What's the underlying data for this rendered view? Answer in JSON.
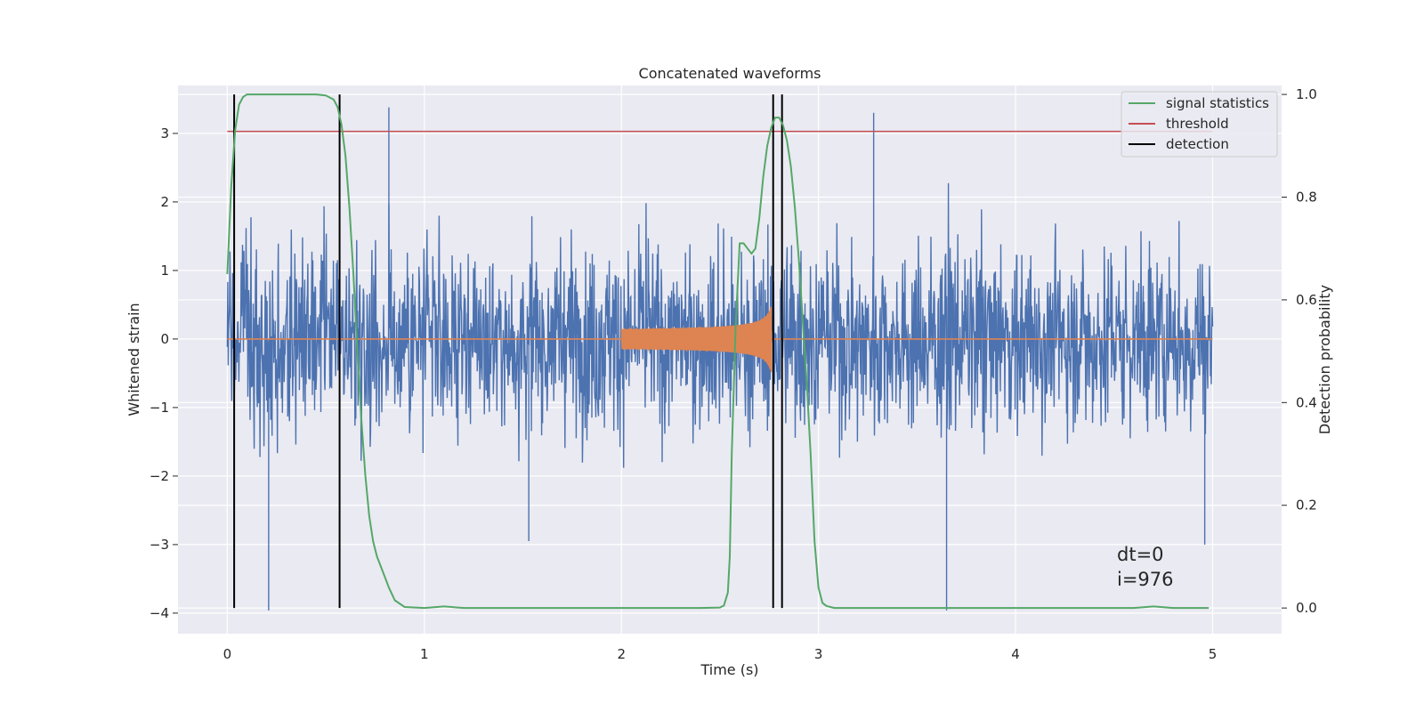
{
  "chart_data": {
    "type": "line",
    "title": "Concatenated waveforms",
    "xlabel": "Time (s)",
    "ylabel": "Whitened strain",
    "y2label": "Detection probability",
    "xlim": [
      -0.25,
      5.35
    ],
    "ylim": [
      -4.3,
      3.7
    ],
    "y2lim": [
      -0.05,
      1.0175
    ],
    "xticks": [
      "0",
      "1",
      "2",
      "3",
      "4",
      "5"
    ],
    "yticks": [
      "−4",
      "−3",
      "−2",
      "−1",
      "0",
      "1",
      "2",
      "3"
    ],
    "y2ticks": [
      "0.0",
      "0.2",
      "0.4",
      "0.6",
      "0.8",
      "1.0"
    ],
    "grid": true,
    "legend_position": "top-right",
    "colors": {
      "background": "#eaeaf2",
      "grid": "#ffffff",
      "strain": "#4c72b0",
      "injection": "#dd8452",
      "signal_statistics": "#55a868",
      "threshold": "#c44e52",
      "detection": "#000000"
    },
    "series": [
      {
        "name": "signal statistics",
        "axis": "right",
        "x": [
          0.0,
          0.02,
          0.04,
          0.06,
          0.08,
          0.1,
          0.15,
          0.3,
          0.45,
          0.5,
          0.54,
          0.56,
          0.58,
          0.6,
          0.62,
          0.64,
          0.66,
          0.68,
          0.7,
          0.72,
          0.74,
          0.76,
          0.78,
          0.8,
          0.82,
          0.85,
          0.9,
          1.0,
          1.1,
          1.2,
          1.5,
          2.0,
          2.4,
          2.5,
          2.52,
          2.54,
          2.55,
          2.56,
          2.58,
          2.6,
          2.62,
          2.64,
          2.66,
          2.68,
          2.7,
          2.72,
          2.74,
          2.76,
          2.78,
          2.8,
          2.82,
          2.84,
          2.86,
          2.88,
          2.9,
          2.92,
          2.94,
          2.96,
          2.98,
          3.0,
          3.02,
          3.04,
          3.08,
          3.2,
          4.0,
          4.6,
          4.7,
          4.8,
          4.98
        ],
        "values": [
          0.65,
          0.82,
          0.93,
          0.98,
          0.995,
          1.0,
          1.0,
          1.0,
          1.0,
          0.998,
          0.99,
          0.975,
          0.94,
          0.88,
          0.78,
          0.65,
          0.5,
          0.37,
          0.26,
          0.18,
          0.13,
          0.1,
          0.08,
          0.06,
          0.04,
          0.015,
          0.002,
          0.0,
          0.003,
          0.0,
          0.0,
          0.0,
          0.0,
          0.001,
          0.005,
          0.03,
          0.1,
          0.3,
          0.55,
          0.71,
          0.71,
          0.7,
          0.69,
          0.7,
          0.76,
          0.84,
          0.9,
          0.935,
          0.955,
          0.955,
          0.94,
          0.91,
          0.86,
          0.78,
          0.68,
          0.56,
          0.44,
          0.3,
          0.13,
          0.04,
          0.01,
          0.004,
          0.0,
          0.0,
          0.0,
          0.0,
          0.003,
          0.0,
          0.0
        ]
      },
      {
        "name": "threshold",
        "axis": "left",
        "x": [
          0.0,
          5.0
        ],
        "values": [
          3.03,
          3.03
        ]
      },
      {
        "name": "detection",
        "axis": "right",
        "x": [
          0.035,
          0.57,
          2.77,
          2.815
        ],
        "y_range": [
          0.0,
          1.0
        ]
      },
      {
        "name": "",
        "axis": "left",
        "kind": "noise",
        "x_range": [
          0.0,
          5.0
        ],
        "typical_amplitude": 1.3,
        "max": 3.38,
        "min": -3.96
      },
      {
        "name": "",
        "axis": "left",
        "kind": "chirp",
        "x_range": [
          2.0,
          2.76
        ],
        "start_amplitude": 0.1,
        "peak_amplitude": 0.5
      }
    ],
    "legend": [
      {
        "label": "signal statistics",
        "color": "#55a868"
      },
      {
        "label": "threshold",
        "color": "#c44e52"
      },
      {
        "label": "detection",
        "color": "#000000"
      }
    ],
    "annotations": [
      "dt=0",
      "i=976"
    ]
  }
}
